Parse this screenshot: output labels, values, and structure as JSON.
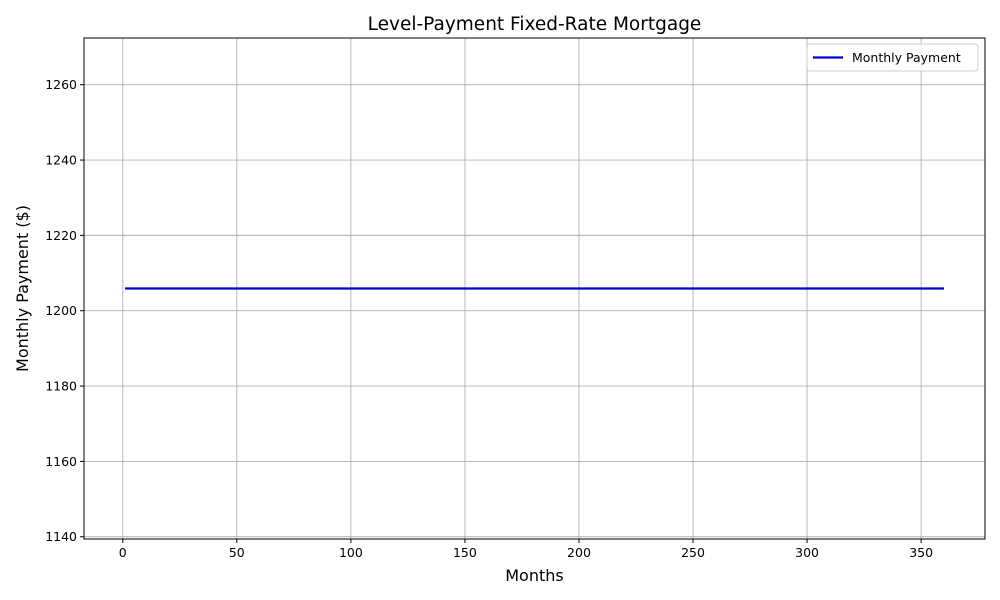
{
  "chart_data": {
    "type": "line",
    "title": "Level-Payment Fixed-Rate Mortgage",
    "xlabel": "Months",
    "ylabel": "Monthly Payment ($)",
    "xlim": [
      -17,
      378
    ],
    "ylim": [
      1139.4,
      1272.4
    ],
    "xticks": [
      0,
      50,
      100,
      150,
      200,
      250,
      300,
      350
    ],
    "yticks": [
      1140,
      1160,
      1180,
      1200,
      1220,
      1240,
      1260
    ],
    "grid": true,
    "legend": "top-right",
    "series": [
      {
        "name": "Monthly Payment",
        "color": "#0000cc",
        "x": [
          1,
          360
        ],
        "y": [
          1205.9,
          1205.9
        ]
      }
    ]
  }
}
